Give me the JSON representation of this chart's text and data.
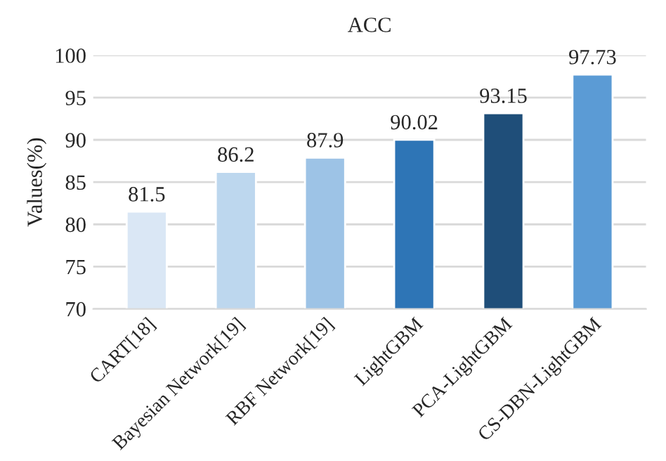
{
  "chart_data": {
    "type": "bar",
    "title": "ACC",
    "ylabel": "Values(%)",
    "categories": [
      "CART[18]",
      "Bayesian Network[19]",
      "RBF Network[19]",
      "LightGBM",
      "PCA-LightGBM",
      "CS-DBN-LightGBM"
    ],
    "values": [
      81.5,
      86.2,
      87.9,
      90.02,
      93.15,
      97.73
    ],
    "colors": [
      "#dae7f5",
      "#bdd7ee",
      "#9dc3e6",
      "#2e75b6",
      "#1f4e79",
      "#5b9bd5"
    ],
    "ylim": [
      70,
      100
    ],
    "yticks": [
      70,
      75,
      80,
      85,
      90,
      95,
      100
    ],
    "grid": "y",
    "data_labels": true
  }
}
